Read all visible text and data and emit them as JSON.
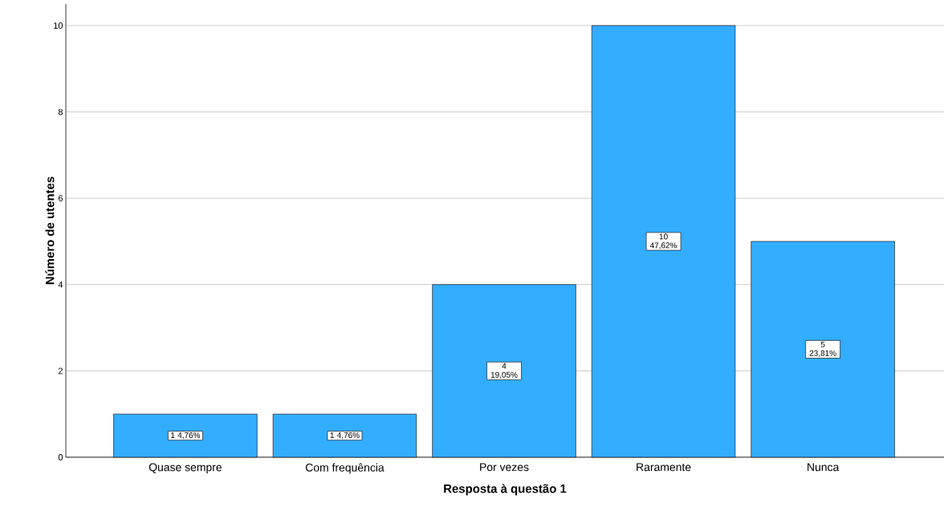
{
  "chart_data": {
    "type": "bar",
    "xlabel": "Resposta à questão 1",
    "ylabel": "Número de utentes",
    "categories": [
      "Quase sempre",
      "Com frequência",
      "Por vezes",
      "Raramente",
      "Nunca"
    ],
    "values": [
      1,
      1,
      4,
      10,
      5
    ],
    "value_labels": [
      "1 4,76%",
      "1 4,76%",
      "4 19,05%",
      "10 47,62%",
      "5 23,81%"
    ],
    "color": "#33adff",
    "ylim": [
      0,
      10.5
    ],
    "yticks": [
      0,
      2,
      4,
      6,
      8,
      10
    ],
    "grid": "y"
  }
}
